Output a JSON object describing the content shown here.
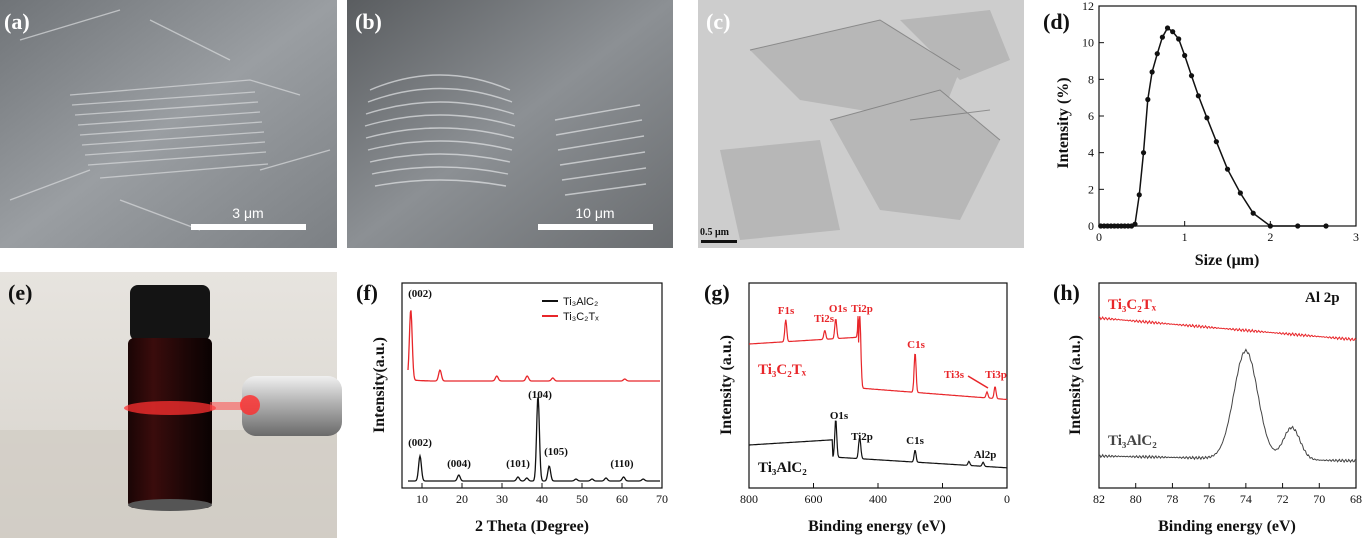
{
  "colors": {
    "red": "#e8262a",
    "black": "#111111",
    "sem_gray": "#8a8e92",
    "tem_gray": "#c9c9c9"
  },
  "panels": {
    "a": {
      "label": "(a)",
      "scalebar": "3 μm"
    },
    "b": {
      "label": "(b)",
      "scalebar": "10 μm"
    },
    "c": {
      "label": "(c)",
      "scalebar": "0.5 μm"
    },
    "e": {
      "label": "(e)"
    },
    "d": {
      "label": "(d)"
    },
    "f": {
      "label": "(f)"
    },
    "g": {
      "label": "(g)"
    },
    "h": {
      "label": "(h)"
    }
  },
  "chart_data": [
    {
      "id": "d",
      "type": "line",
      "xlabel": "Size (μm)",
      "ylabel": "Intensity (%)",
      "xlim": [
        0,
        3
      ],
      "ylim": [
        0,
        12
      ],
      "xticks": [
        "0",
        "1",
        "2",
        "3"
      ],
      "yticks": [
        "0",
        "2",
        "4",
        "6",
        "8",
        "10",
        "12"
      ],
      "series": [
        {
          "x": [
            0.02,
            0.06,
            0.1,
            0.14,
            0.18,
            0.22,
            0.26,
            0.3,
            0.34,
            0.38,
            0.42,
            0.47,
            0.52,
            0.57,
            0.62,
            0.68,
            0.74,
            0.8,
            0.86,
            0.93,
            1.0,
            1.08,
            1.16,
            1.26,
            1.37,
            1.5,
            1.65,
            1.8,
            2.0,
            2.32,
            2.65
          ],
          "y": [
            0,
            0,
            0,
            0,
            0,
            0,
            0,
            0,
            0,
            0,
            0.1,
            1.7,
            4.0,
            6.9,
            8.4,
            9.4,
            10.3,
            10.8,
            10.6,
            10.2,
            9.3,
            8.2,
            7.1,
            5.9,
            4.6,
            3.1,
            1.8,
            0.7,
            0,
            0,
            0
          ]
        }
      ]
    },
    {
      "id": "f",
      "type": "line",
      "xlabel": "2 Theta (Degree)",
      "ylabel": "Intensity(a.u.)",
      "xlim": [
        5,
        70
      ],
      "xticks": [
        "10",
        "20",
        "30",
        "40",
        "50",
        "60",
        "70"
      ],
      "legend": [
        "Ti₃AlC₂",
        "Ti₃C₂Tₓ"
      ],
      "legend_position": "top-right",
      "annotations": [
        "(002)",
        "(002)",
        "(004)",
        "(101)",
        "(104)",
        "(105)",
        "(110)"
      ],
      "series": [
        {
          "name": "Ti₃AlC₂",
          "color": "#111111",
          "peaks": [
            [
              9.5,
              25
            ],
            [
              19.2,
              6
            ],
            [
              34.0,
              4
            ],
            [
              36.2,
              3
            ],
            [
              39.0,
              85
            ],
            [
              41.8,
              15
            ],
            [
              48.5,
              2
            ],
            [
              52.5,
              2
            ],
            [
              56.0,
              3
            ],
            [
              60.4,
              4
            ],
            [
              65.3,
              2
            ]
          ]
        },
        {
          "name": "Ti₃C₂Tₓ",
          "color": "#e8262a",
          "peaks": [
            [
              7.2,
              70
            ],
            [
              14.5,
              11
            ],
            [
              28.7,
              5
            ],
            [
              36.3,
              5
            ],
            [
              42.7,
              3
            ],
            [
              60.7,
              2
            ]
          ]
        }
      ]
    },
    {
      "id": "g",
      "type": "line",
      "xlabel": "Binding energy (eV)",
      "ylabel": "Intensity (a.u.)",
      "xlim": [
        800,
        0
      ],
      "xticks": [
        "800",
        "600",
        "400",
        "200",
        "0"
      ],
      "series_labels": [
        "Ti₃C₂Tₓ",
        "Ti₃AlC₂"
      ],
      "peak_labels_red": [
        "F1s",
        "Ti2s",
        "O1s",
        "Ti2p",
        "C1s",
        "Ti3s",
        "Ti3p"
      ],
      "peak_labels_black": [
        "O1s",
        "Ti2p",
        "C1s",
        "Al2p"
      ]
    },
    {
      "id": "h",
      "type": "line",
      "title": "Al 2p",
      "xlabel": "Binding energy (eV)",
      "ylabel": "Intensity (a.u.)",
      "xlim": [
        82,
        68
      ],
      "xticks": [
        "82",
        "80",
        "78",
        "76",
        "74",
        "72",
        "70",
        "68"
      ],
      "series_labels": [
        "Ti₃C₂Tₓ",
        "Ti₃AlC₂"
      ]
    }
  ]
}
